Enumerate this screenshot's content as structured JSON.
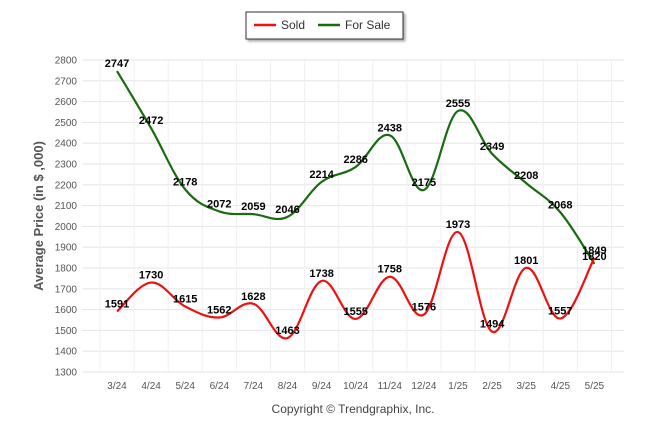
{
  "chart_data": {
    "type": "line",
    "categories": [
      "3/24",
      "4/24",
      "5/24",
      "6/24",
      "7/24",
      "8/24",
      "9/24",
      "10/24",
      "11/24",
      "12/24",
      "1/25",
      "2/25",
      "3/25",
      "4/25",
      "5/25"
    ],
    "series": [
      {
        "name": "Sold",
        "color": "#ee1111",
        "values": [
          1591,
          1730,
          1615,
          1562,
          1628,
          1463,
          1738,
          1555,
          1758,
          1576,
          1973,
          1494,
          1801,
          1557,
          1849
        ]
      },
      {
        "name": "For Sale",
        "color": "#1a6b12",
        "values": [
          2747,
          2472,
          2178,
          2072,
          2059,
          2046,
          2214,
          2286,
          2438,
          2175,
          2555,
          2349,
          2208,
          2068,
          1820
        ]
      }
    ],
    "title": "",
    "xlabel": "",
    "ylabel": "Average Price (in $ ,000)",
    "ylim": [
      1300,
      2800
    ],
    "yticks": [
      1300,
      1400,
      1500,
      1600,
      1700,
      1800,
      1900,
      2000,
      2100,
      2200,
      2300,
      2400,
      2500,
      2600,
      2700,
      2800
    ],
    "grid": true,
    "legend_position": "top"
  },
  "footer": {
    "copyright": "Copyright © Trendgraphix, Inc."
  }
}
